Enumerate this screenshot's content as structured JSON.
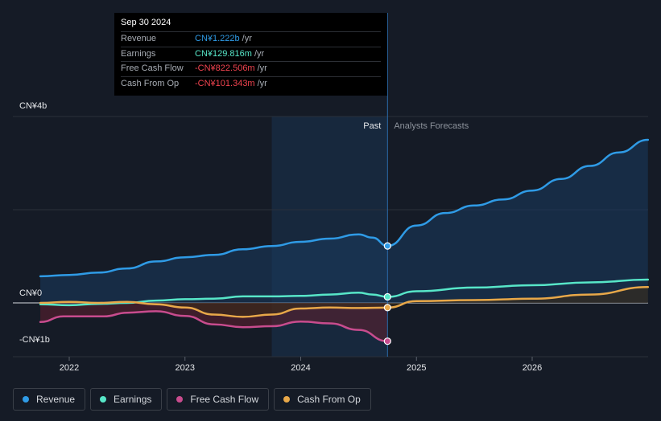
{
  "tooltip": {
    "date": "Sep 30 2024",
    "rows": [
      {
        "label": "Revenue",
        "value": "CN¥1.222b",
        "unit": "/yr",
        "color": "#2f9be6"
      },
      {
        "label": "Earnings",
        "value": "CN¥129.816m",
        "unit": "/yr",
        "color": "#57e6c8"
      },
      {
        "label": "Free Cash Flow",
        "value": "-CN¥822.506m",
        "unit": "/yr",
        "color": "#f0434f"
      },
      {
        "label": "Cash From Op",
        "value": "-CN¥101.343m",
        "unit": "/yr",
        "color": "#f0434f"
      }
    ]
  },
  "labels": {
    "past": "Past",
    "forecast": "Analysts Forecasts"
  },
  "legend": [
    {
      "label": "Revenue",
      "color": "#2f9be6"
    },
    {
      "label": "Earnings",
      "color": "#57e6c8"
    },
    {
      "label": "Free Cash Flow",
      "color": "#c84c8e"
    },
    {
      "label": "Cash From Op",
      "color": "#e8a849"
    }
  ],
  "chart_data": {
    "type": "line",
    "x_unit": "year",
    "y_unit": "CN¥ billions",
    "ylim": [
      -1,
      4
    ],
    "y_ticks": [
      {
        "value": 4,
        "label": "CN¥4b"
      },
      {
        "value": 0,
        "label": "CN¥0"
      },
      {
        "value": -1,
        "label": "-CN¥1b"
      }
    ],
    "x_ticks": [
      {
        "value": 2022,
        "label": "2022"
      },
      {
        "value": 2023,
        "label": "2023"
      },
      {
        "value": 2024,
        "label": "2024"
      },
      {
        "value": 2025,
        "label": "2025"
      },
      {
        "value": 2026,
        "label": "2026"
      }
    ],
    "xlim": [
      2021.7,
      2027.0
    ],
    "past_end": 2024.75,
    "highlight_start": 2023.75,
    "series": [
      {
        "name": "Revenue",
        "color": "#2f9be6",
        "fill": true,
        "points": [
          [
            2021.75,
            0.57
          ],
          [
            2022.0,
            0.6
          ],
          [
            2022.25,
            0.65
          ],
          [
            2022.5,
            0.74
          ],
          [
            2022.75,
            0.89
          ],
          [
            2023.0,
            0.98
          ],
          [
            2023.25,
            1.03
          ],
          [
            2023.5,
            1.15
          ],
          [
            2023.75,
            1.22
          ],
          [
            2024.0,
            1.31
          ],
          [
            2024.25,
            1.38
          ],
          [
            2024.5,
            1.47
          ],
          [
            2024.62,
            1.4
          ],
          [
            2024.75,
            1.222
          ]
        ],
        "forecast": [
          [
            2024.75,
            1.222
          ],
          [
            2025.0,
            1.66
          ],
          [
            2025.25,
            1.93
          ],
          [
            2025.5,
            2.09
          ],
          [
            2025.75,
            2.22
          ],
          [
            2026.0,
            2.41
          ],
          [
            2026.25,
            2.66
          ],
          [
            2026.5,
            2.94
          ],
          [
            2026.75,
            3.23
          ],
          [
            2027.0,
            3.5
          ]
        ]
      },
      {
        "name": "Earnings",
        "color": "#57e6c8",
        "fill": false,
        "points": [
          [
            2021.75,
            -0.03
          ],
          [
            2022.0,
            -0.05
          ],
          [
            2022.25,
            -0.02
          ],
          [
            2022.5,
            0.0
          ],
          [
            2022.75,
            0.05
          ],
          [
            2023.0,
            0.08
          ],
          [
            2023.25,
            0.09
          ],
          [
            2023.5,
            0.14
          ],
          [
            2023.75,
            0.14
          ],
          [
            2024.0,
            0.15
          ],
          [
            2024.25,
            0.18
          ],
          [
            2024.5,
            0.22
          ],
          [
            2024.62,
            0.18
          ],
          [
            2024.75,
            0.13
          ]
        ],
        "forecast": [
          [
            2024.75,
            0.13
          ],
          [
            2025.0,
            0.25
          ],
          [
            2025.5,
            0.33
          ],
          [
            2026.0,
            0.38
          ],
          [
            2026.5,
            0.44
          ],
          [
            2027.0,
            0.5
          ]
        ]
      },
      {
        "name": "Free Cash Flow",
        "color": "#c84c8e",
        "fill": true,
        "points": [
          [
            2021.75,
            -0.41
          ],
          [
            2021.95,
            -0.29
          ],
          [
            2022.3,
            -0.29
          ],
          [
            2022.5,
            -0.21
          ],
          [
            2022.75,
            -0.18
          ],
          [
            2023.0,
            -0.28
          ],
          [
            2023.25,
            -0.46
          ],
          [
            2023.5,
            -0.52
          ],
          [
            2023.75,
            -0.5
          ],
          [
            2024.0,
            -0.4
          ],
          [
            2024.25,
            -0.44
          ],
          [
            2024.5,
            -0.58
          ],
          [
            2024.75,
            -0.822
          ]
        ],
        "forecast": []
      },
      {
        "name": "Cash From Op",
        "color": "#e8a849",
        "fill": true,
        "points": [
          [
            2021.75,
            0.0
          ],
          [
            2022.0,
            0.02
          ],
          [
            2022.25,
            0.0
          ],
          [
            2022.5,
            0.02
          ],
          [
            2022.75,
            -0.03
          ],
          [
            2023.0,
            -0.1
          ],
          [
            2023.25,
            -0.25
          ],
          [
            2023.5,
            -0.3
          ],
          [
            2023.75,
            -0.25
          ],
          [
            2024.0,
            -0.12
          ],
          [
            2024.25,
            -0.1
          ],
          [
            2024.5,
            -0.11
          ],
          [
            2024.75,
            -0.101
          ]
        ],
        "forecast": [
          [
            2024.75,
            -0.101
          ],
          [
            2025.0,
            0.04
          ],
          [
            2025.5,
            0.06
          ],
          [
            2026.0,
            0.09
          ],
          [
            2026.5,
            0.18
          ],
          [
            2027.0,
            0.34
          ]
        ]
      }
    ]
  }
}
